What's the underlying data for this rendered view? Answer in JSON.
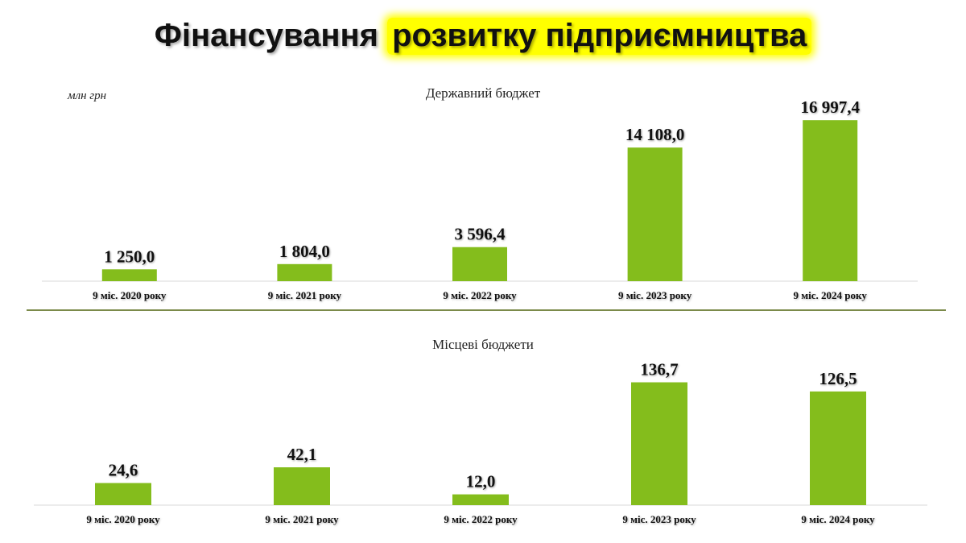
{
  "title": {
    "part1": "Фінансування ",
    "part2": "розвитку підприємництва"
  },
  "units": "млн грн",
  "colors": {
    "bar": "#84bd1c",
    "highlight": "#ffff00",
    "divider": "#7b8a4a"
  },
  "chart_data": [
    {
      "type": "bar",
      "title": "Державний бюджет",
      "ylabel": "млн грн",
      "categories": [
        "9 міс. 2020 року",
        "9 міс. 2021 року",
        "9 міс. 2022 року",
        "9 міс. 2023 року",
        "9 міс. 2024 року"
      ],
      "values": [
        1250.0,
        1804.0,
        3596.4,
        14108.0,
        16997.4
      ],
      "labels": [
        "1 250,0",
        "1 804,0",
        "3 596,4",
        "14 108,0",
        "16 997,4"
      ],
      "ylim": [
        0,
        18000
      ],
      "grid": false,
      "legend": "none"
    },
    {
      "type": "bar",
      "title": "Місцеві бюджети",
      "categories": [
        "9 міс. 2020 року",
        "9 міс. 2021 року",
        "9 міс. 2022 року",
        "9 міс. 2023 року",
        "9 міс. 2024 року"
      ],
      "values": [
        24.6,
        42.1,
        12.0,
        136.7,
        126.5
      ],
      "labels": [
        "24,6",
        "42,1",
        "12,0",
        "136,7",
        "126,5"
      ],
      "ylim": [
        0,
        150
      ],
      "grid": false,
      "legend": "none"
    }
  ]
}
